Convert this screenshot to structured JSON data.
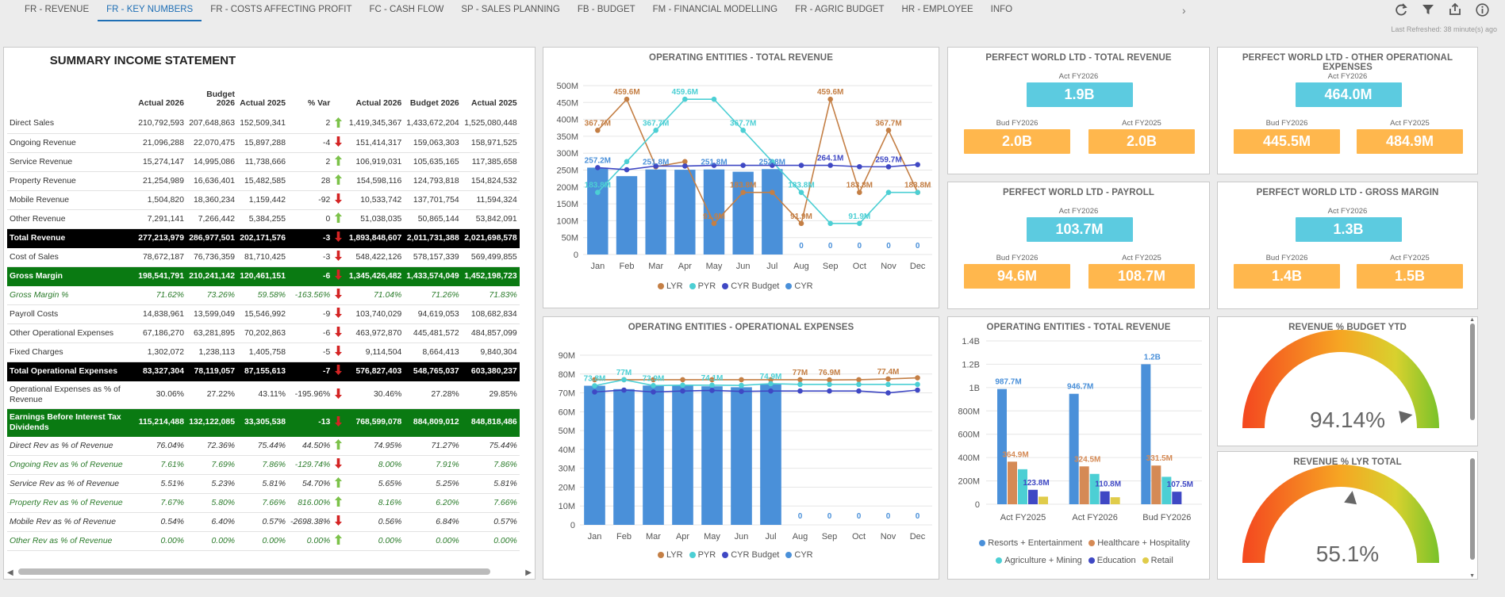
{
  "tabs": [
    {
      "label": "FR - REVENUE",
      "active": false
    },
    {
      "label": "FR - KEY NUMBERS",
      "active": true
    },
    {
      "label": "FR - COSTS AFFECTING PROFIT",
      "active": false
    },
    {
      "label": "FC - CASH FLOW",
      "active": false
    },
    {
      "label": "SP - SALES PLANNING",
      "active": false
    },
    {
      "label": "FB - BUDGET",
      "active": false
    },
    {
      "label": "FM - FINANCIAL MODELLING",
      "active": false
    },
    {
      "label": "FR - AGRIC BUDGET",
      "active": false
    },
    {
      "label": "HR - EMPLOYEE",
      "active": false
    },
    {
      "label": "INFO",
      "active": false
    }
  ],
  "toolbar": {
    "icons": [
      "refresh-icon",
      "filter-icon",
      "export-icon",
      "info-icon"
    ],
    "last_refreshed": "Last Refreshed: 38 minute(s) ago"
  },
  "summary": {
    "title": "SUMMARY INCOME STATEMENT",
    "headers": [
      "",
      "Actual 2026",
      "Budget 2026",
      "Actual 2025",
      "% Var",
      "",
      "Actual 2026",
      "Budget 2026",
      "Actual 2025"
    ],
    "rows": [
      {
        "style": "",
        "cells": [
          "Direct Sales",
          "210,792,593",
          "207,648,863",
          "152,509,341",
          "2",
          "up",
          "1,419,345,367",
          "1,433,672,204",
          "1,525,080,448"
        ]
      },
      {
        "style": "",
        "cells": [
          "Ongoing Revenue",
          "21,096,288",
          "22,070,475",
          "15,897,288",
          "-4",
          "dn",
          "151,414,317",
          "159,063,303",
          "158,971,525"
        ]
      },
      {
        "style": "",
        "cells": [
          "Service Revenue",
          "15,274,147",
          "14,995,086",
          "11,738,666",
          "2",
          "up",
          "106,919,031",
          "105,635,165",
          "117,385,658"
        ]
      },
      {
        "style": "",
        "cells": [
          "Property Revenue",
          "21,254,989",
          "16,636,401",
          "15,482,585",
          "28",
          "up",
          "154,598,116",
          "124,793,818",
          "154,824,532"
        ]
      },
      {
        "style": "",
        "cells": [
          "Mobile Revenue",
          "1,504,820",
          "18,360,234",
          "1,159,442",
          "-92",
          "dn",
          "10,533,742",
          "137,701,754",
          "11,594,324"
        ]
      },
      {
        "style": "",
        "cells": [
          "Other Revenue",
          "7,291,141",
          "7,266,442",
          "5,384,255",
          "0",
          "up",
          "51,038,035",
          "50,865,144",
          "53,842,091"
        ]
      },
      {
        "style": "tot",
        "cells": [
          "Total Revenue",
          "277,213,979",
          "286,977,501",
          "202,171,576",
          "-3",
          "dn",
          "1,893,848,607",
          "2,011,731,388",
          "2,021,698,578"
        ]
      },
      {
        "style": "",
        "cells": [
          "Cost of Sales",
          "78,672,187",
          "76,736,359",
          "81,710,425",
          "-3",
          "dn",
          "548,422,126",
          "578,157,339",
          "569,499,855"
        ]
      },
      {
        "style": "grn",
        "cells": [
          "Gross Margin",
          "198,541,791",
          "210,241,142",
          "120,461,151",
          "-6",
          "dn",
          "1,345,426,482",
          "1,433,574,049",
          "1,452,198,723"
        ]
      },
      {
        "style": "pct",
        "cells": [
          "Gross Margin %",
          "71.62%",
          "73.26%",
          "59.58%",
          "-163.56%",
          "dn",
          "71.04%",
          "71.26%",
          "71.83%"
        ]
      },
      {
        "style": "",
        "cells": [
          "Payroll Costs",
          "14,838,961",
          "13,599,049",
          "15,546,992",
          "-9",
          "dn",
          "103,740,029",
          "94,619,053",
          "108,682,834"
        ]
      },
      {
        "style": "",
        "cells": [
          "Other Operational Expenses",
          "67,186,270",
          "63,281,895",
          "70,202,863",
          "-6",
          "dn",
          "463,972,870",
          "445,481,572",
          "484,857,099"
        ]
      },
      {
        "style": "",
        "cells": [
          "Fixed Charges",
          "1,302,072",
          "1,238,113",
          "1,405,758",
          "-5",
          "dn",
          "9,114,504",
          "8,664,413",
          "9,840,304"
        ]
      },
      {
        "style": "tot",
        "cells": [
          "Total Operational Expenses",
          "83,327,304",
          "78,119,057",
          "87,155,613",
          "-7",
          "dn",
          "576,827,403",
          "548,765,037",
          "603,380,237"
        ]
      },
      {
        "style": "tall",
        "cells": [
          "Operational Expenses as % of Revenue",
          "30.06%",
          "27.22%",
          "43.11%",
          "-195.96%",
          "dn",
          "30.46%",
          "27.28%",
          "29.85%"
        ]
      },
      {
        "style": "grn tall",
        "cells": [
          "Earnings Before Interest Tax Dividends",
          "115,214,488",
          "132,122,085",
          "33,305,538",
          "-13",
          "dn",
          "768,599,078",
          "884,809,012",
          "848,818,486"
        ]
      },
      {
        "style": "pct blk",
        "cells": [
          "Direct Rev as % of Revenue",
          "76.04%",
          "72.36%",
          "75.44%",
          "44.50%",
          "up",
          "74.95%",
          "71.27%",
          "75.44%"
        ]
      },
      {
        "style": "pct",
        "cells": [
          "Ongoing Rev as % of Revenue",
          "7.61%",
          "7.69%",
          "7.86%",
          "-129.74%",
          "dn",
          "8.00%",
          "7.91%",
          "7.86%"
        ]
      },
      {
        "style": "pct blk",
        "cells": [
          "Service Rev as % of Revenue",
          "5.51%",
          "5.23%",
          "5.81%",
          "54.70%",
          "up",
          "5.65%",
          "5.25%",
          "5.81%"
        ]
      },
      {
        "style": "pct",
        "cells": [
          "Property Rev as % of Revenue",
          "7.67%",
          "5.80%",
          "7.66%",
          "816.00%",
          "up",
          "8.16%",
          "6.20%",
          "7.66%"
        ]
      },
      {
        "style": "pct blk",
        "cells": [
          "Mobile Rev as % of Revenue",
          "0.54%",
          "6.40%",
          "0.57%",
          "-2698.38%",
          "dn",
          "0.56%",
          "6.84%",
          "0.57%"
        ]
      },
      {
        "style": "pct",
        "cells": [
          "Other Rev as % of Revenue",
          "0.00%",
          "0.00%",
          "0.00%",
          "0.00%",
          "up",
          "0.00%",
          "0.00%",
          "0.00%"
        ]
      }
    ]
  },
  "chart_data": [
    {
      "type": "bar",
      "title": "OPERATING ENTITIES - TOTAL REVENUE",
      "categories": [
        "Jan",
        "Feb",
        "Mar",
        "Apr",
        "May",
        "Jun",
        "Jul",
        "Aug",
        "Sep",
        "Oct",
        "Nov",
        "Dec"
      ],
      "yticks": [
        "0",
        "50M",
        "100M",
        "150M",
        "200M",
        "250M",
        "300M",
        "350M",
        "400M",
        "450M",
        "500M"
      ],
      "ylim": [
        0,
        500
      ],
      "series": [
        {
          "name": "LYR",
          "kind": "line",
          "color": "#c47f45",
          "values": [
            367.7,
            459.6,
            260,
            275,
            91.9,
            183.8,
            183.8,
            91.9,
            459.6,
            183.8,
            367.7,
            183.8
          ]
        },
        {
          "name": "PYR",
          "kind": "line",
          "color": "#4ccfd4",
          "values": [
            183.8,
            275,
            367.7,
            459.6,
            459.6,
            367.7,
            275,
            183.8,
            91.9,
            91.9,
            183.8,
            183.8
          ]
        },
        {
          "name": "CYR Budget",
          "kind": "line",
          "color": "#3f48c4",
          "values": [
            257.2,
            251,
            262,
            262,
            264,
            264,
            264,
            264,
            264.1,
            260,
            259.7,
            266
          ]
        },
        {
          "name": "CYR",
          "kind": "bar",
          "color": "#4a90d9",
          "values": [
            257.2,
            232,
            251.8,
            251,
            251.8,
            245,
            252.8,
            0,
            0,
            0,
            0,
            0
          ]
        }
      ],
      "data_labels": [
        {
          "text": "367.7M",
          "series": "LYR",
          "i": 0
        },
        {
          "text": "459.6M",
          "series": "LYR",
          "i": 1
        },
        {
          "text": "459.6M",
          "series": "LYR",
          "i": 8
        },
        {
          "text": "367.7M",
          "series": "LYR",
          "i": 10
        },
        {
          "text": "183.8M",
          "series": "LYR",
          "i": 5
        },
        {
          "text": "91.9M",
          "series": "LYR",
          "i": 4
        },
        {
          "text": "183.8M",
          "series": "LYR",
          "i": 9
        },
        {
          "text": "183.8M",
          "series": "LYR",
          "i": 11
        },
        {
          "text": "91.9M",
          "series": "LYR",
          "i": 7
        },
        {
          "text": "459.6M",
          "series": "PYR",
          "i": 3
        },
        {
          "text": "367.7M",
          "series": "PYR",
          "i": 2
        },
        {
          "text": "367.7M",
          "series": "PYR",
          "i": 5
        },
        {
          "text": "183.8M",
          "series": "PYR",
          "i": 7
        },
        {
          "text": "91.9M",
          "series": "PYR",
          "i": 9
        },
        {
          "text": "183.8M",
          "series": "PYR",
          "i": 0
        },
        {
          "text": "257.2M",
          "series": "CYR",
          "i": 0
        },
        {
          "text": "251.8M",
          "series": "CYR",
          "i": 2
        },
        {
          "text": "251.8M",
          "series": "CYR",
          "i": 4
        },
        {
          "text": "252.8M",
          "series": "CYR",
          "i": 6
        },
        {
          "text": "264.1M",
          "series": "CYR Budget",
          "i": 8
        },
        {
          "text": "259.7M",
          "series": "CYR Budget",
          "i": 10
        },
        {
          "text": "0",
          "series": "CYR",
          "i": 7
        },
        {
          "text": "0",
          "series": "CYR",
          "i": 8
        },
        {
          "text": "0",
          "series": "CYR",
          "i": 9
        },
        {
          "text": "0",
          "series": "CYR",
          "i": 10
        },
        {
          "text": "0",
          "series": "CYR",
          "i": 11
        }
      ],
      "legend": [
        "LYR",
        "PYR",
        "CYR Budget",
        "CYR"
      ]
    },
    {
      "type": "bar",
      "title": "OPERATING ENTITIES - OPERATIONAL EXPENSES",
      "categories": [
        "Jan",
        "Feb",
        "Mar",
        "Apr",
        "May",
        "Jun",
        "Jul",
        "Aug",
        "Sep",
        "Oct",
        "Nov",
        "Dec"
      ],
      "yticks": [
        "0",
        "10M",
        "20M",
        "30M",
        "40M",
        "50M",
        "60M",
        "70M",
        "80M",
        "90M"
      ],
      "ylim": [
        0,
        90
      ],
      "series": [
        {
          "name": "LYR",
          "kind": "line",
          "color": "#c47f45",
          "values": [
            77,
            77,
            77,
            77,
            77,
            77,
            77,
            77,
            76.9,
            77,
            77.4,
            78
          ]
        },
        {
          "name": "PYR",
          "kind": "line",
          "color": "#4ccfd4",
          "values": [
            73.8,
            77,
            73.9,
            74.1,
            74.1,
            74,
            74.9,
            74.5,
            74.5,
            74.5,
            74.5,
            74.5
          ]
        },
        {
          "name": "CYR Budget",
          "kind": "line",
          "color": "#3f48c4",
          "values": [
            70.5,
            71.5,
            70.5,
            71,
            71.3,
            70.8,
            71,
            71,
            71,
            71,
            70,
            71.5
          ]
        },
        {
          "name": "CYR",
          "kind": "bar",
          "color": "#4a90d9",
          "values": [
            73.8,
            72,
            73.9,
            74.1,
            73.5,
            73,
            74.9,
            0,
            0,
            0,
            0,
            0
          ]
        }
      ],
      "data_labels": [
        {
          "text": "73.8M",
          "series": "PYR",
          "i": 0
        },
        {
          "text": "77M",
          "series": "PYR",
          "i": 1
        },
        {
          "text": "73.9M",
          "series": "PYR",
          "i": 2
        },
        {
          "text": "74.1M",
          "series": "PYR",
          "i": 4
        },
        {
          "text": "74.9M",
          "series": "PYR",
          "i": 6
        },
        {
          "text": "77M",
          "series": "LYR",
          "i": 7
        },
        {
          "text": "76.9M",
          "series": "LYR",
          "i": 8
        },
        {
          "text": "77.4M",
          "series": "LYR",
          "i": 10
        },
        {
          "text": "0",
          "series": "CYR",
          "i": 7
        },
        {
          "text": "0",
          "series": "CYR",
          "i": 8
        },
        {
          "text": "0",
          "series": "CYR",
          "i": 9
        },
        {
          "text": "0",
          "series": "CYR",
          "i": 10
        },
        {
          "text": "0",
          "series": "CYR",
          "i": 11
        }
      ],
      "legend": [
        "LYR",
        "PYR",
        "CYR Budget",
        "CYR"
      ]
    },
    {
      "type": "bar",
      "title": "OPERATING ENTITIES - TOTAL REVENUE",
      "categories": [
        "Act FY2025",
        "Act FY2026",
        "Bud FY2026"
      ],
      "yticks": [
        "0",
        "200M",
        "400M",
        "600M",
        "800M",
        "1B",
        "1.2B",
        "1.4B"
      ],
      "ylim": [
        0,
        1400
      ],
      "series": [
        {
          "name": "Resorts + Entertainment",
          "color": "#4a90d9",
          "values": [
            987.7,
            946.7,
            1200
          ]
        },
        {
          "name": "Healthcare + Hospitality",
          "color": "#d58a55",
          "values": [
            364.9,
            324.5,
            331.5
          ]
        },
        {
          "name": "Agriculture + Mining",
          "color": "#4ccfd4",
          "values": [
            300,
            260,
            235
          ]
        },
        {
          "name": "Education",
          "color": "#3f48c4",
          "values": [
            123.8,
            110.8,
            107.5
          ]
        },
        {
          "name": "Retail",
          "color": "#e0cc4a",
          "values": [
            65,
            60,
            0
          ]
        }
      ],
      "data_labels": [
        {
          "text": "987.7M",
          "series": 0,
          "i": 0
        },
        {
          "text": "946.7M",
          "series": 0,
          "i": 1
        },
        {
          "text": "1.2B",
          "series": 0,
          "i": 2
        },
        {
          "text": "364.9M",
          "series": 1,
          "i": 0
        },
        {
          "text": "324.5M",
          "series": 1,
          "i": 1
        },
        {
          "text": "331.5M",
          "series": 1,
          "i": 2
        },
        {
          "text": "123.8M",
          "series": 3,
          "i": 0
        },
        {
          "text": "110.8M",
          "series": 3,
          "i": 1
        },
        {
          "text": "107.5M",
          "series": 3,
          "i": 2
        }
      ],
      "legend": [
        "Resorts + Entertainment",
        "Healthcare + Hospitality",
        "Agriculture + Mining",
        "Education",
        "Retail"
      ]
    }
  ],
  "kpis": [
    {
      "title": "PERFECT WORLD LTD - TOTAL REVENUE",
      "main_label": "Act FY2026",
      "main": "1.9B",
      "bud_label": "Bud FY2026",
      "bud": "2.0B",
      "act_label": "Act FY2025",
      "act": "2.0B"
    },
    {
      "title": "PERFECT WORLD LTD - OTHER OPERATIONAL EXPENSES",
      "main_label": "Act FY2026",
      "main": "464.0M",
      "bud_label": "Bud FY2026",
      "bud": "445.5M",
      "act_label": "Act FY2025",
      "act": "484.9M"
    },
    {
      "title": "PERFECT WORLD LTD - PAYROLL",
      "main_label": "Act FY2026",
      "main": "103.7M",
      "bud_label": "Bud FY2026",
      "bud": "94.6M",
      "act_label": "Act FY2025",
      "act": "108.7M"
    },
    {
      "title": "PERFECT WORLD LTD - GROSS MARGIN",
      "main_label": "Act FY2026",
      "main": "1.3B",
      "bud_label": "Bud FY2026",
      "bud": "1.4B",
      "act_label": "Act FY2025",
      "act": "1.5B"
    }
  ],
  "gauges": [
    {
      "title": "REVENUE % BUDGET YTD",
      "value": "94.14%",
      "fraction": 0.9414
    },
    {
      "title": "REVENUE % LYR TOTAL",
      "value": "55.1%",
      "fraction": 0.551
    }
  ]
}
